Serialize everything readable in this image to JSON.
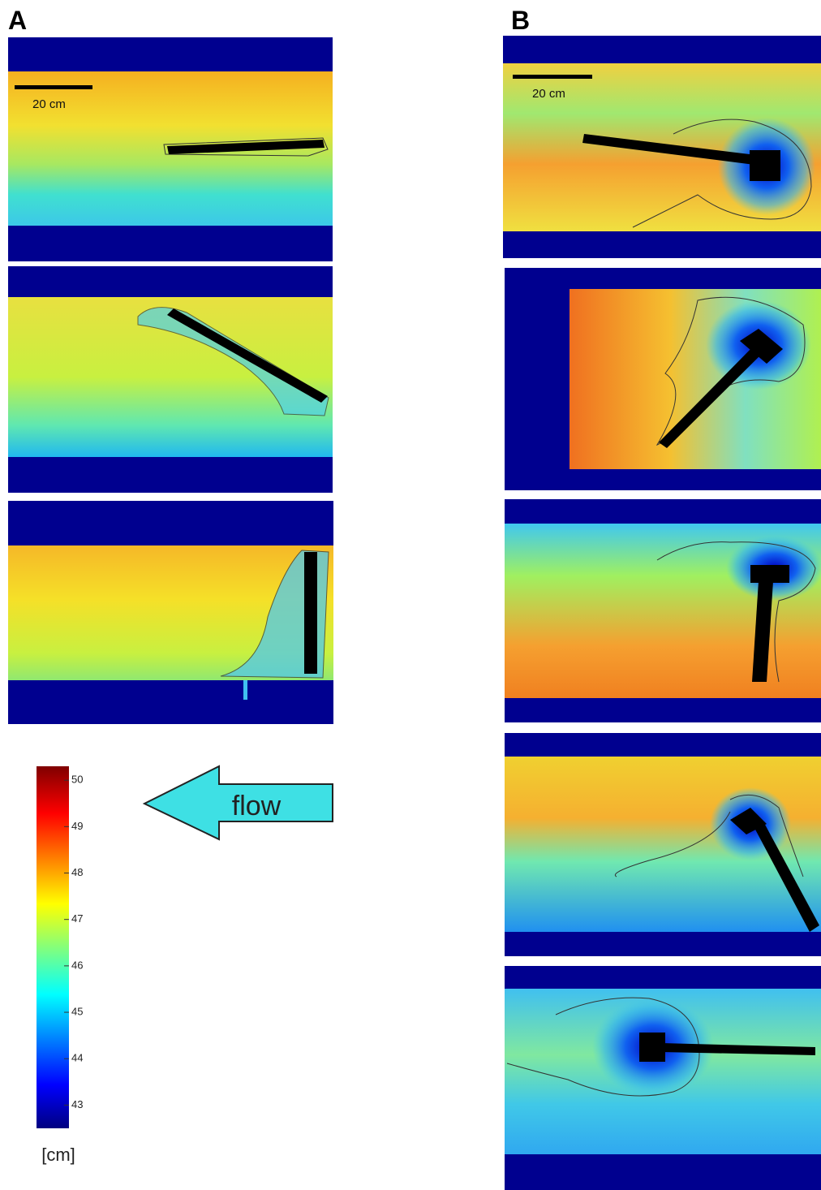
{
  "panels": {
    "a_label": "A",
    "b_label": "B"
  },
  "scale_bars": [
    "20 cm",
    "20 cm"
  ],
  "flow_label": "flow",
  "colorbar": {
    "range": [
      42.5,
      50.3
    ],
    "ticks": [
      43,
      44,
      45,
      46,
      47,
      48,
      49,
      50
    ],
    "unit": "[cm]"
  }
}
